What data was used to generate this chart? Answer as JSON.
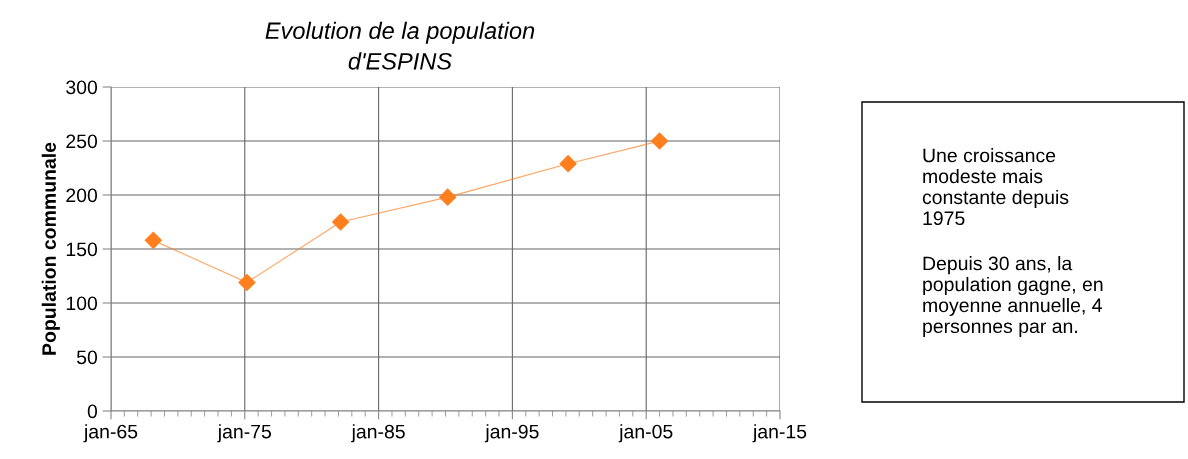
{
  "chart_data": {
    "type": "line",
    "title": "Evolution de la population\nd'ESPINS",
    "ylabel": "Population communale",
    "x": [
      "1968-03",
      "1975-03",
      "1982-03",
      "1990-03",
      "1999-03",
      "2006-01"
    ],
    "series": [
      {
        "color": "#ff7f1f",
        "values": [
          158,
          119,
          175,
          198,
          229,
          250
        ]
      }
    ],
    "marker": "diamond",
    "line_style": "solid",
    "grid": true,
    "legend": false,
    "xlim": [
      "1965-01-01",
      "2015-01-01"
    ],
    "xticks": [
      {
        "value": "1965-01-01",
        "label": "jan-65"
      },
      {
        "value": "1975-01-01",
        "label": "jan-75"
      },
      {
        "value": "1985-01-01",
        "label": "jan-85"
      },
      {
        "value": "1995-01-01",
        "label": "jan-95"
      },
      {
        "value": "2005-01-01",
        "label": "jan-05"
      },
      {
        "value": "2015-01-01",
        "label": "jan-15"
      }
    ],
    "ylim": [
      0,
      300
    ],
    "yticks": [
      0,
      50,
      100,
      150,
      200,
      250,
      300
    ],
    "annotations": [
      "Une croissance\nmodeste mais\nconstante depuis\n1975",
      "Depuis 30 ans, la\npopulation gagne, en\nmoyenne annuelle, 4\npersonnes par an."
    ]
  }
}
